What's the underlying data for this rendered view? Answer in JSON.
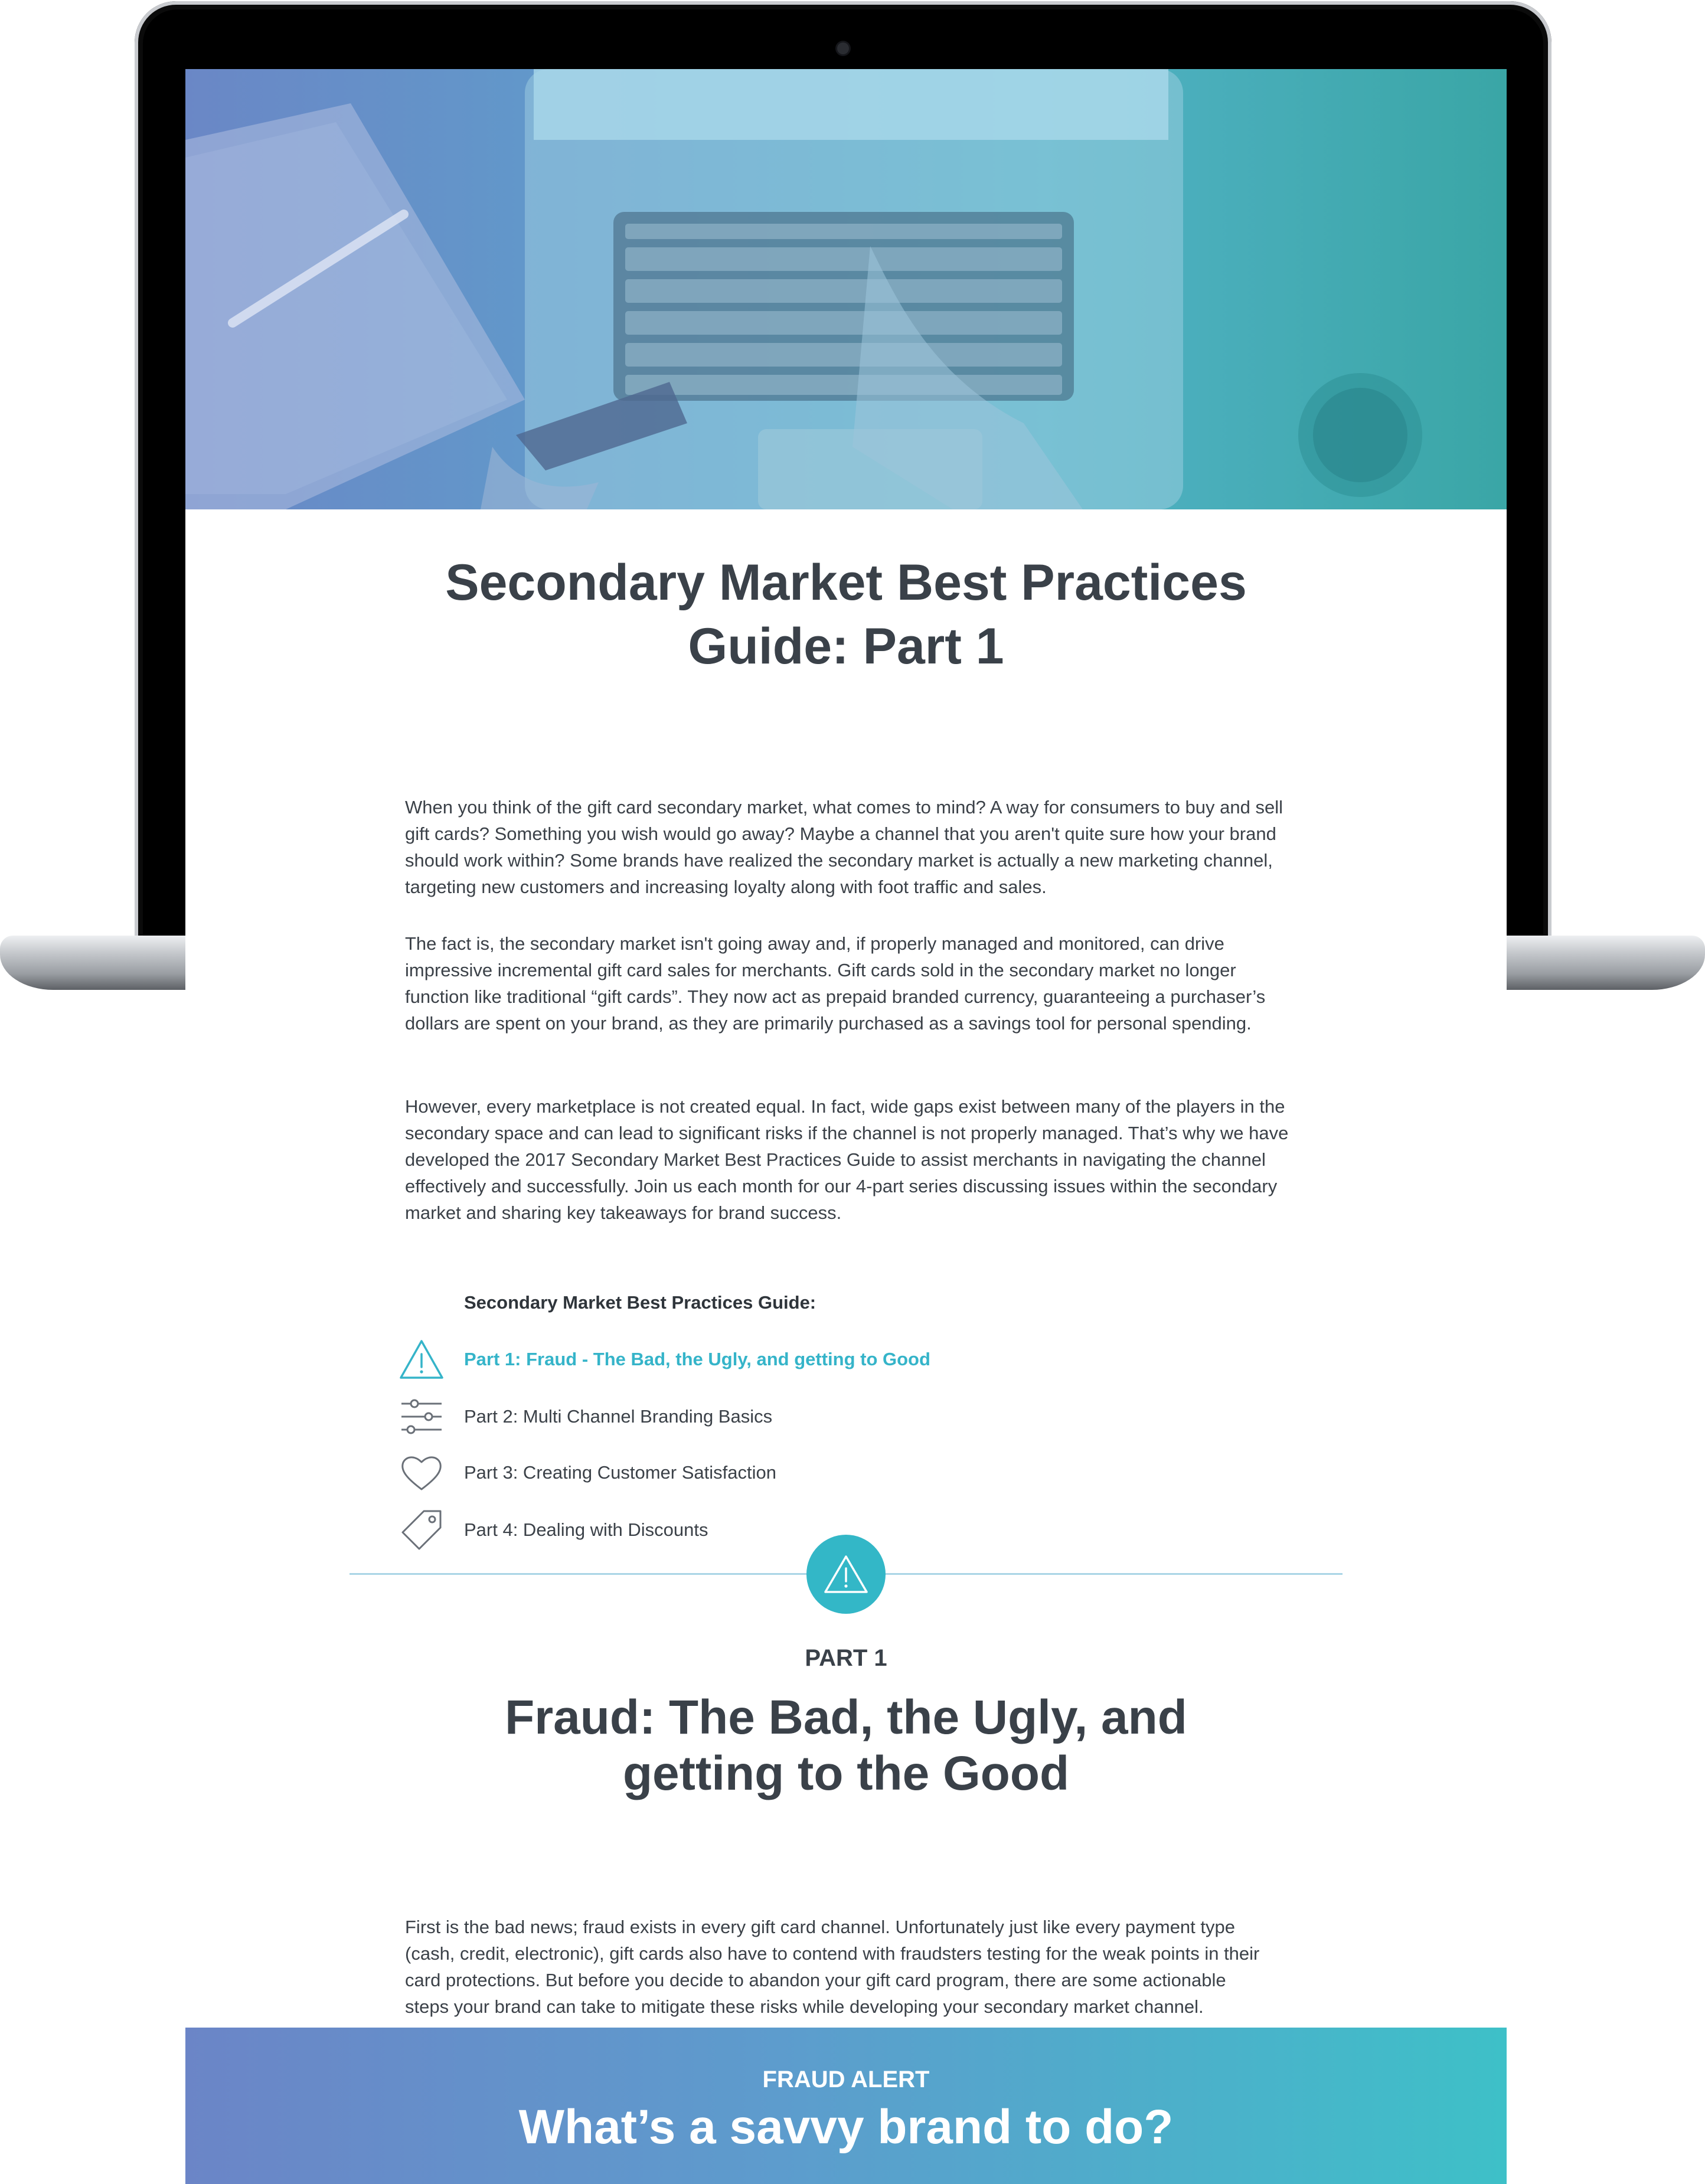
{
  "article": {
    "title_line1": "Secondary Market Best Practices",
    "title_line2": "Guide: Part 1",
    "intro_paragraphs": [
      "When you think of the gift card secondary market, what comes to mind? A way for consumers to buy and sell gift cards? Something you wish would go away? Maybe a channel that you aren't quite sure how your brand should work within? Some brands have realized the secondary market is actually a new marketing channel, targeting new customers and increasing loyalty along with foot traffic and sales.",
      "The fact is, the secondary market isn't going away and, if properly managed and monitored, can drive impressive incremental gift card sales for merchants. Gift cards sold in the secondary market no longer function like traditional “gift cards”. They now act as prepaid branded currency, guaranteeing a purchaser’s dollars are spent on your brand, as they are primarily purchased as a savings tool for personal spending.",
      "However, every marketplace is not created equal. In fact, wide gaps exist between many of the players in the secondary space and can lead to significant risks if the channel is not properly managed. That’s why we have developed the 2017 Secondary Market Best Practices Guide to assist merchants in navigating the channel effectively and successfully. Join us each month for our 4-part series discussing issues within the secondary market and sharing key takeaways for brand success."
    ]
  },
  "guide": {
    "heading": "Secondary Market Best Practices Guide:",
    "items": [
      {
        "label": "Part 1: Fraud - The Bad, the Ugly, and getting to Good",
        "icon": "warning-triangle-icon",
        "active": true
      },
      {
        "label": "Part 2: Multi Channel Branding Basics",
        "icon": "sliders-icon",
        "active": false
      },
      {
        "label": "Part 3: Creating Customer Satisfaction",
        "icon": "heart-icon",
        "active": false
      },
      {
        "label": "Part 4: Dealing with Discounts",
        "icon": "tag-icon",
        "active": false
      }
    ]
  },
  "section": {
    "part_label": "PART 1",
    "title_line1": "Fraud: The Bad, the Ugly, and",
    "title_line2": "getting to the Good",
    "paragraph": "First is the bad news; fraud exists in every gift card channel. Unfortunately just like every payment type (cash, credit, electronic), gift cards also have to contend with fraudsters testing for the weak points in their card protections. But before you decide to abandon your gift card program, there are some actionable steps your brand can take to mitigate these risks while developing your secondary market channel."
  },
  "banner": {
    "kicker": "FRAUD ALERT",
    "title": "What’s a savvy brand to do?"
  },
  "colors": {
    "accent": "#35b4c9",
    "heading_text": "#3a4149",
    "body_text": "#3b4148",
    "divider": "#aad5e6",
    "banner_start": "#6b85c7",
    "banner_end": "#3ec0c8"
  }
}
